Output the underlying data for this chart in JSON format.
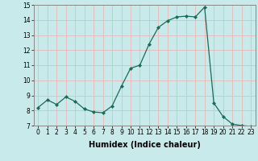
{
  "x": [
    0,
    1,
    2,
    3,
    4,
    5,
    6,
    7,
    8,
    9,
    10,
    11,
    12,
    13,
    14,
    15,
    16,
    17,
    18,
    19,
    20,
    21,
    22,
    23
  ],
  "y": [
    8.2,
    8.7,
    8.4,
    8.9,
    8.6,
    8.1,
    7.9,
    7.85,
    8.3,
    9.6,
    10.8,
    11.0,
    12.4,
    13.5,
    13.95,
    14.2,
    14.25,
    14.2,
    14.85,
    8.5,
    7.6,
    7.1,
    7.0,
    6.95
  ],
  "xlabel": "Humidex (Indice chaleur)",
  "line_color": "#1a6b5a",
  "marker_color": "#1a6b5a",
  "bg_color": "#c8eaea",
  "grid_color": "#e8b8b8",
  "xlim": [
    -0.5,
    23.5
  ],
  "ylim": [
    7,
    15
  ],
  "yticks": [
    7,
    8,
    9,
    10,
    11,
    12,
    13,
    14,
    15
  ],
  "xticks": [
    0,
    1,
    2,
    3,
    4,
    5,
    6,
    7,
    8,
    9,
    10,
    11,
    12,
    13,
    14,
    15,
    16,
    17,
    18,
    19,
    20,
    21,
    22,
    23
  ],
  "tick_fontsize": 5.5,
  "xlabel_fontsize": 7
}
